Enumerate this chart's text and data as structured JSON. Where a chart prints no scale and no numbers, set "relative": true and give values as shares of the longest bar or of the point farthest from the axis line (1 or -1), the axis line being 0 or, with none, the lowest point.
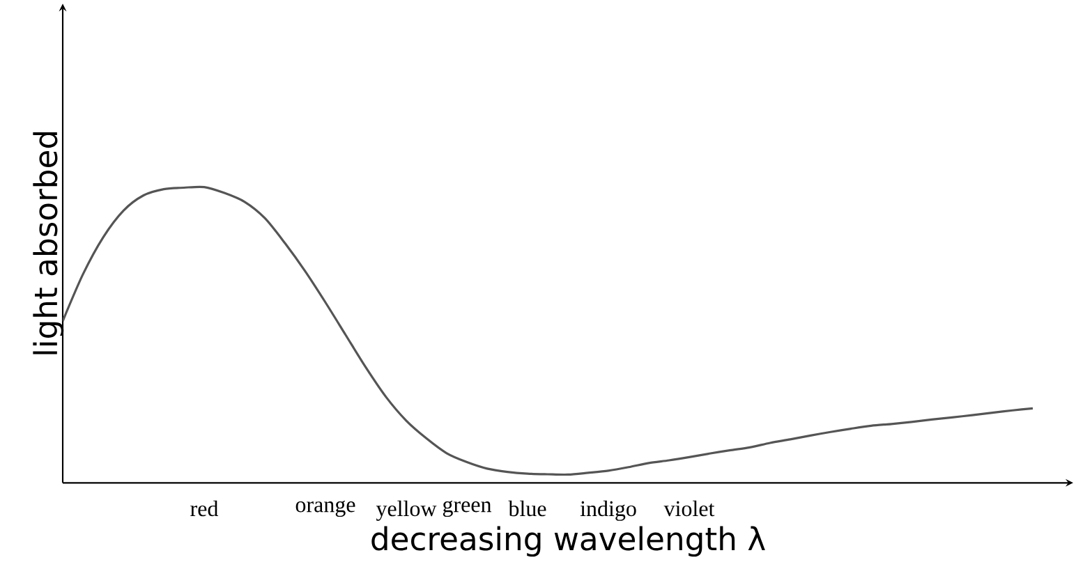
{
  "chart_data": {
    "type": "line",
    "relative": true,
    "xlabel": "decreasing wavelength λ",
    "ylabel": "light absorbed",
    "categories": [
      null,
      null,
      null,
      null,
      null,
      null,
      null,
      "red",
      null,
      null,
      null,
      null,
      null,
      "orange",
      null,
      null,
      null,
      "yellow",
      null,
      null,
      "green",
      null,
      null,
      "blue",
      null,
      null,
      null,
      "indigo",
      null,
      null,
      null,
      "violet",
      null,
      null,
      null,
      null,
      null,
      null,
      null,
      null,
      null,
      null,
      null,
      null,
      null,
      null,
      null,
      null,
      null
    ],
    "series": [
      {
        "color": "#555555",
        "values": [
          0.547,
          0.705,
          0.83,
          0.92,
          0.972,
          0.993,
          0.998,
          1,
          0.98,
          0.95,
          0.895,
          0.81,
          0.715,
          0.61,
          0.5,
          0.39,
          0.29,
          0.21,
          0.15,
          0.1,
          0.07,
          0.048,
          0.037,
          0.031,
          0.029,
          0.028,
          0.034,
          0.041,
          0.053,
          0.067,
          0.076,
          0.087,
          0.099,
          0.11,
          0.12,
          0.135,
          0.147,
          0.16,
          0.172,
          0.183,
          0.193,
          0.199,
          0.206,
          0.214,
          0.221,
          0.229,
          0.237,
          0.245,
          0.252
        ]
      }
    ]
  }
}
